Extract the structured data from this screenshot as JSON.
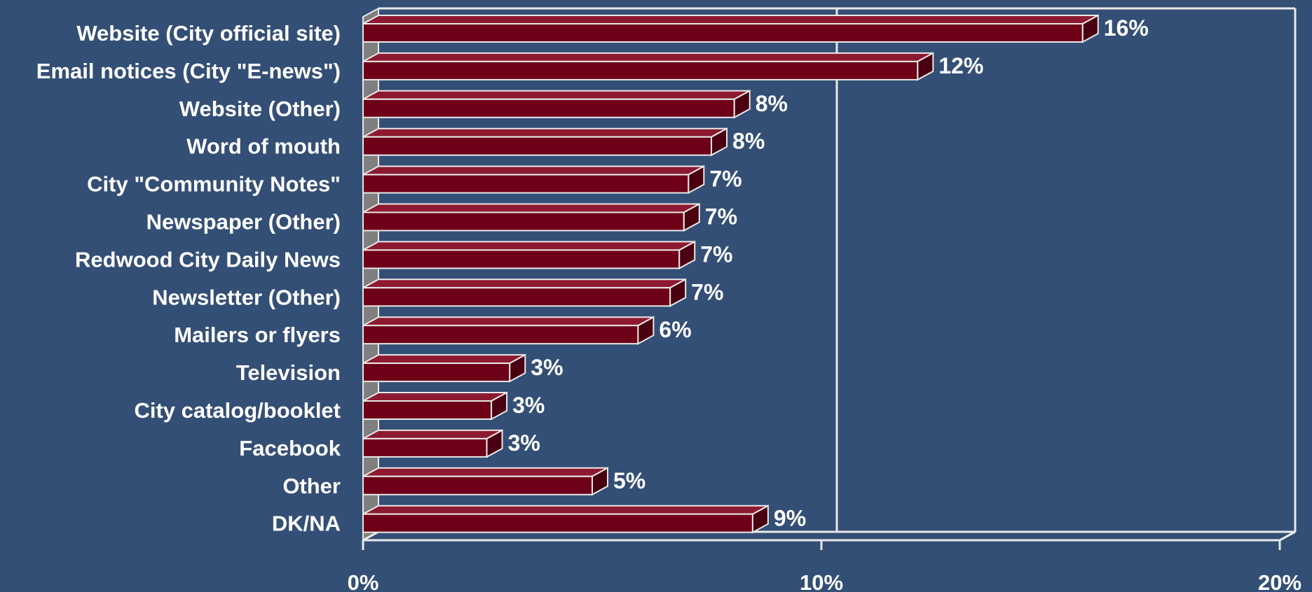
{
  "chart_data": {
    "type": "bar",
    "orientation": "horizontal",
    "style": "3d",
    "categories": [
      "Website (City official site)",
      "Email notices (City \"E-news\")",
      "Website (Other)",
      "Word of mouth",
      "City \"Community Notes\"",
      "Newspaper (Other)",
      "Redwood City Daily News",
      "Newsletter (Other)",
      "Mailers or flyers",
      "Television",
      "City catalog/booklet ",
      "Facebook",
      "Other",
      "DK/NA"
    ],
    "values": [
      16,
      12,
      8,
      8,
      7,
      7,
      7,
      7,
      6,
      3,
      3,
      3,
      5,
      9
    ],
    "bar_values": [
      15.7,
      12.1,
      8.1,
      7.6,
      7.1,
      7.0,
      6.9,
      6.7,
      6.0,
      3.2,
      2.8,
      2.7,
      5.0,
      8.5
    ],
    "value_labels": [
      "16%",
      "12%",
      "8%",
      "8%",
      "7%",
      "7%",
      "7%",
      "7%",
      "6%",
      "3%",
      "3%",
      "3%",
      "5%",
      "9%"
    ],
    "xlim": [
      0,
      20
    ],
    "xticks": [
      0,
      10,
      20
    ],
    "xtick_labels": [
      "0%",
      "10%",
      "20%"
    ],
    "title": "",
    "xlabel": "",
    "ylabel": "",
    "grid": "vertical gridlines at 10% and 20%",
    "legend": "none",
    "colors": {
      "background": "#344f75",
      "bar_front": "#6e0018",
      "bar_top": "#8d1a30",
      "bar_side": "#4a0010",
      "bar_edge": "#e9e9e9",
      "axis_line": "#e9e9e9",
      "floor_wall": "#7f7f7f",
      "text": "#ffffff"
    }
  }
}
